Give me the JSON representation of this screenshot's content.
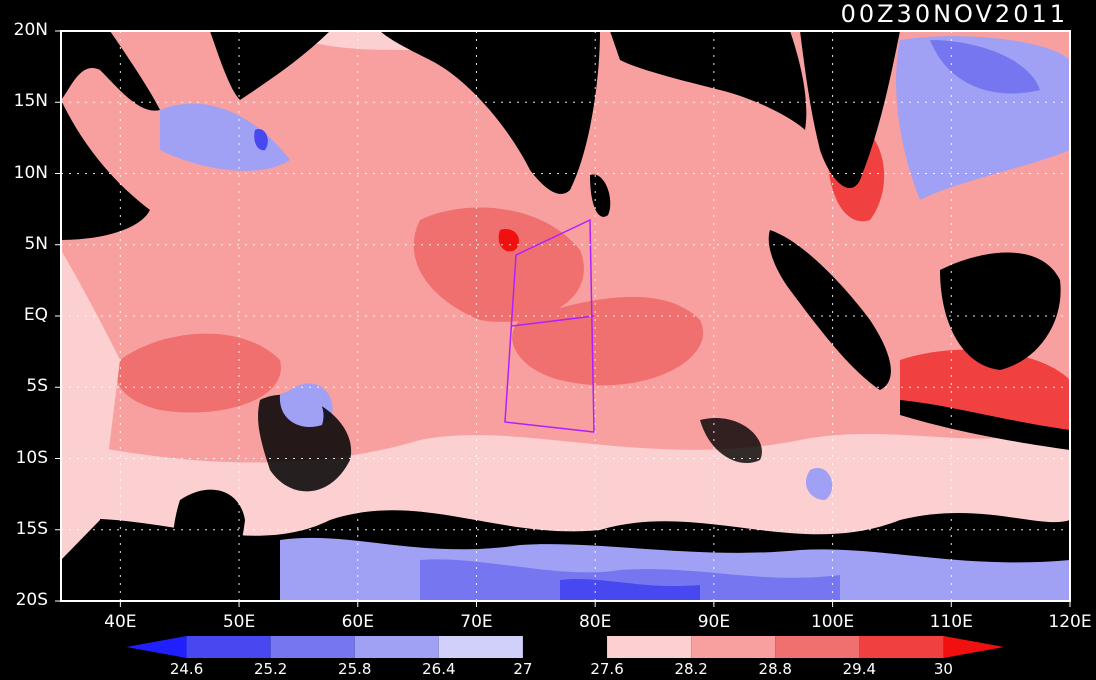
{
  "title": "00Z30NOV2011",
  "axes": {
    "y_ticks": [
      "20N",
      "15N",
      "10N",
      "5N",
      "EQ",
      "5S",
      "10S",
      "15S",
      "20S"
    ],
    "x_ticks": [
      "40E",
      "50E",
      "60E",
      "70E",
      "80E",
      "90E",
      "100E",
      "110E",
      "120E"
    ],
    "lon_range": [
      35,
      120
    ],
    "lat_range": [
      -20,
      20
    ],
    "grid": "dotted"
  },
  "colorbar": {
    "levels": [
      "24.6",
      "25.2",
      "25.8",
      "26.4",
      "27",
      "27.6",
      "28.2",
      "28.8",
      "29.4",
      "30"
    ],
    "colors": [
      "#2020ff",
      "#4848f0",
      "#7676f0",
      "#a0a0f4",
      "#d0d0fa",
      "#000000",
      "#fcd0d0",
      "#f8a0a0",
      "#f07070",
      "#f04040",
      "#f01010"
    ]
  },
  "map": {
    "land_color": "#000000",
    "region_box": "purple outline"
  }
}
